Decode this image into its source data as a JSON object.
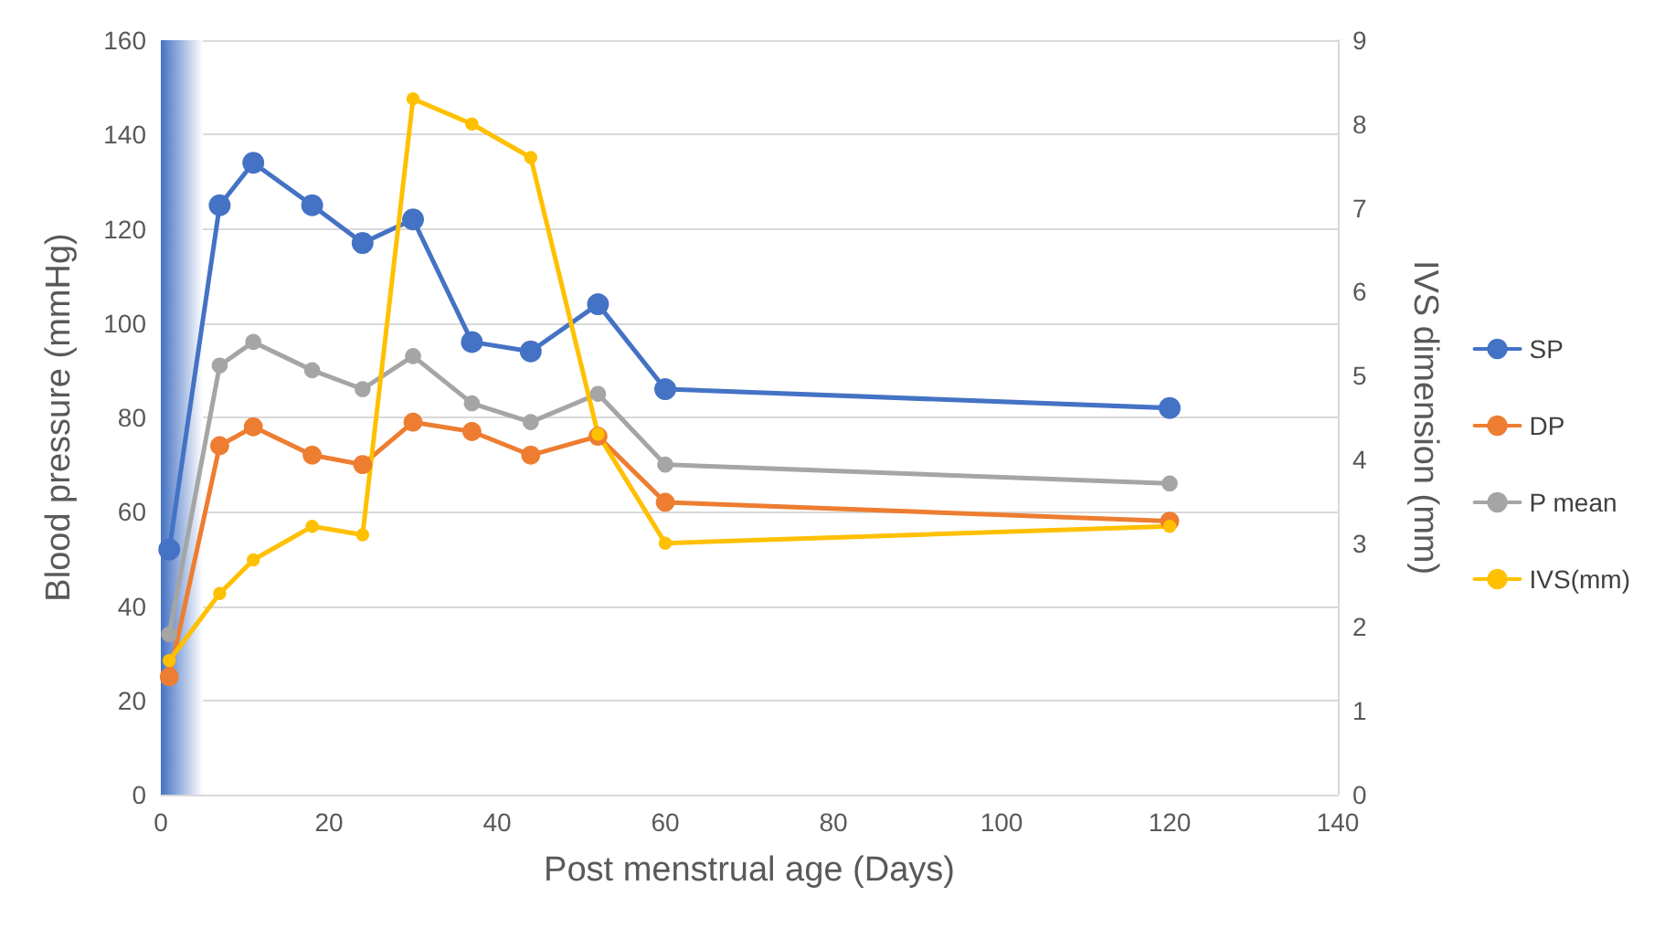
{
  "chart_data": {
    "type": "line",
    "xlabel": "Post menstrual age (Days)",
    "ylabel": "Blood pressure (mmHg)",
    "y2label": "IVS dimension (mm)",
    "x": [
      1,
      7,
      11,
      18,
      24,
      30,
      37,
      44,
      52,
      60,
      120
    ],
    "series": [
      {
        "name": "SP",
        "color": "#4472c4",
        "values": [
          52,
          125,
          134,
          125,
          117,
          122,
          96,
          94,
          104,
          86,
          82
        ]
      },
      {
        "name": "DP",
        "color": "#ed7d31",
        "values": [
          25,
          74,
          78,
          72,
          70,
          79,
          77,
          72,
          76,
          62,
          58
        ]
      },
      {
        "name": "P mean",
        "color": "#a5a5a5",
        "values": [
          34,
          91,
          96,
          90,
          86,
          93,
          83,
          79,
          85,
          70,
          66
        ]
      },
      {
        "name": "IVS(mm)",
        "color": "#ffc000",
        "axis": "y2",
        "values": [
          1.6,
          2.4,
          2.8,
          3.2,
          3.1,
          8.3,
          8.0,
          7.6,
          4.3,
          3.0,
          3.2
        ]
      }
    ],
    "xlim": [
      0,
      140
    ],
    "xticks": [
      0,
      20,
      40,
      60,
      80,
      100,
      120,
      140
    ],
    "ylim": [
      0,
      160
    ],
    "yticks": [
      0,
      20,
      40,
      60,
      80,
      100,
      120,
      140,
      160
    ],
    "y2lim": [
      0,
      9
    ],
    "y2ticks": [
      0,
      1,
      2,
      3,
      4,
      5,
      6,
      7,
      8,
      9
    ],
    "bands": [
      {
        "axis": "x",
        "from": 0,
        "to": 5,
        "color": "#4472c4"
      }
    ],
    "grid": "y",
    "legend": "right",
    "marker": "circle",
    "line_style": "solid"
  }
}
